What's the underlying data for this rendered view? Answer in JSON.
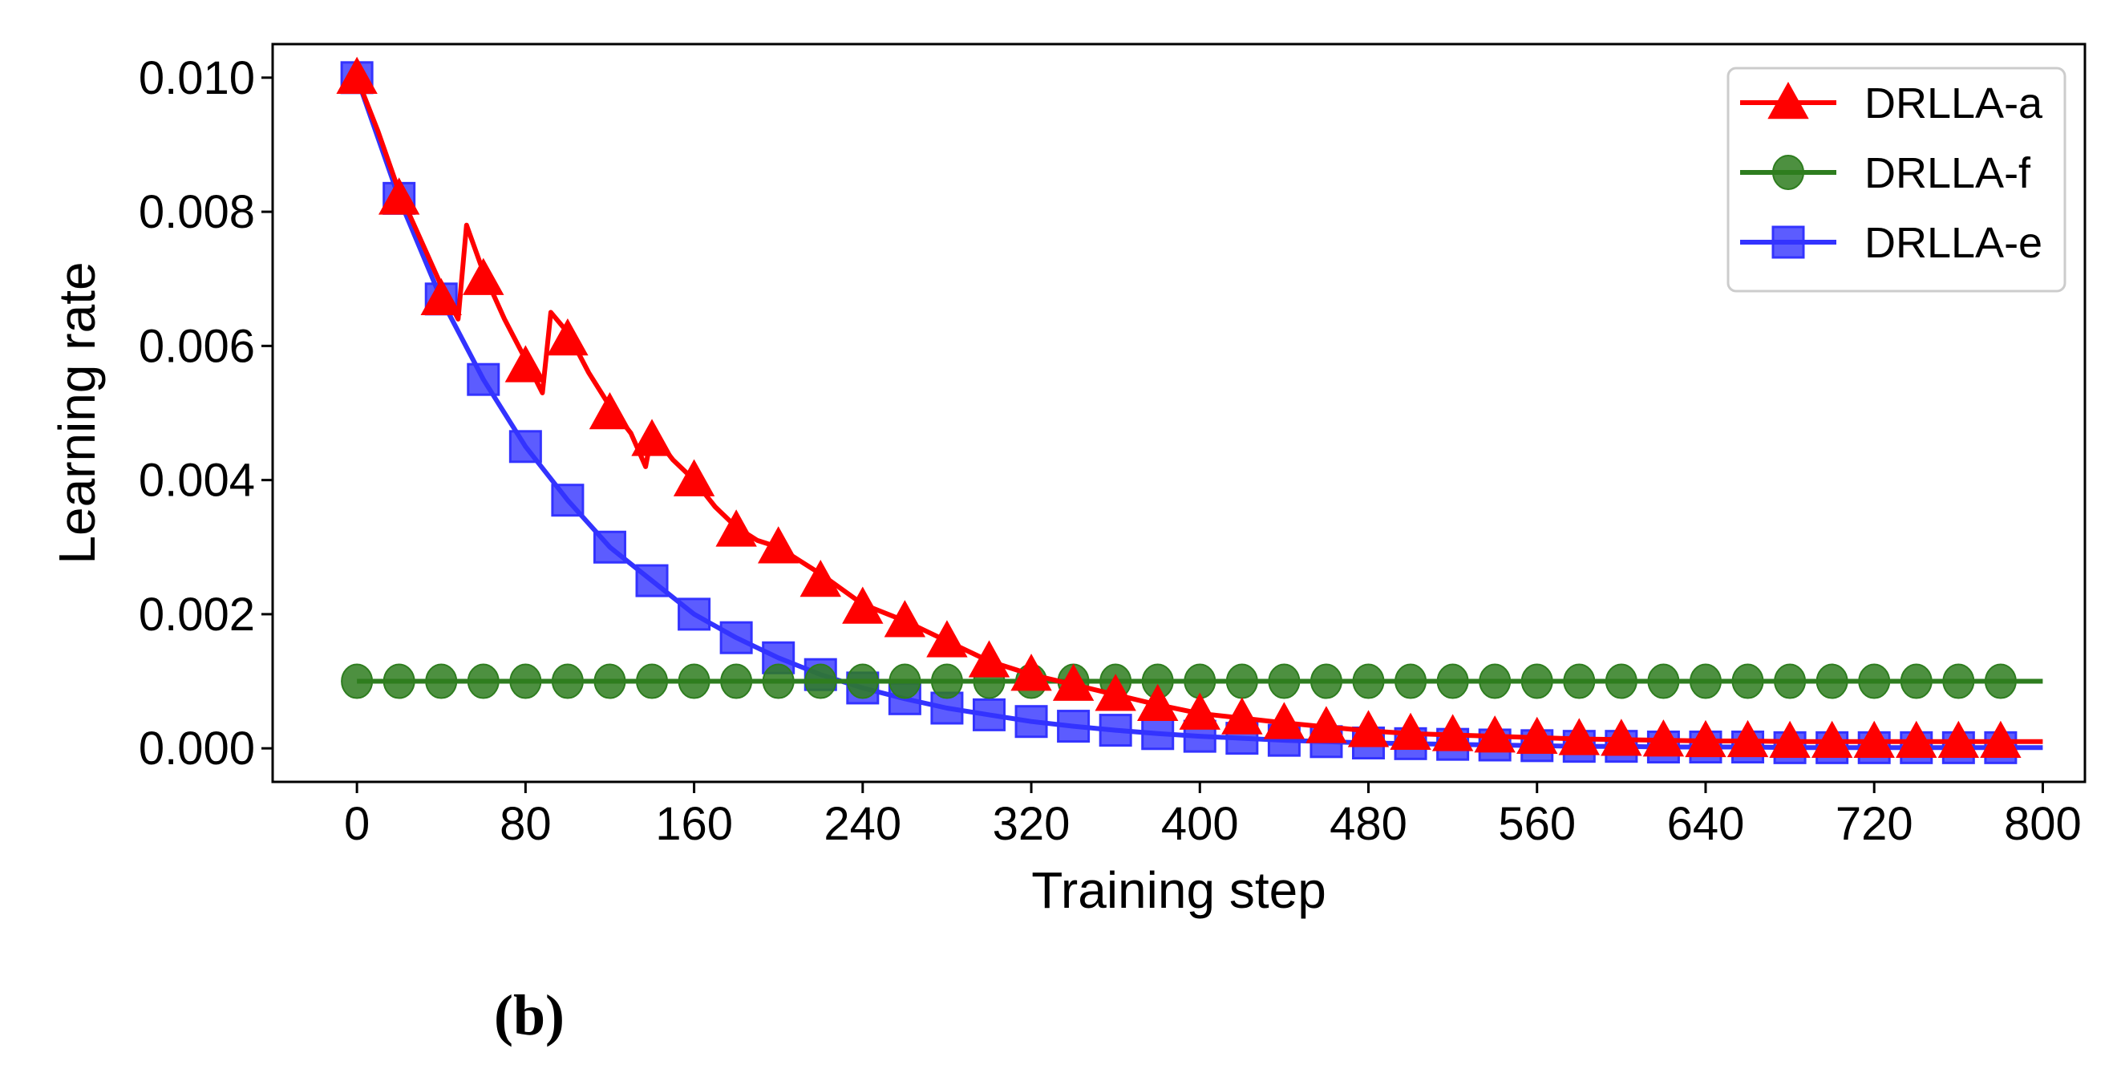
{
  "chart_data": {
    "type": "line",
    "xlabel": "Training step",
    "ylabel": "Learning rate",
    "xlim": [
      -40,
      820
    ],
    "ylim": [
      -0.0005,
      0.0105
    ],
    "xticks": [
      0,
      80,
      160,
      240,
      320,
      400,
      480,
      560,
      640,
      720,
      800
    ],
    "xtick_labels": [
      "0",
      "80",
      "160",
      "240",
      "320",
      "400",
      "480",
      "560",
      "640",
      "720",
      "800"
    ],
    "yticks": [
      0.0,
      0.002,
      0.004,
      0.006,
      0.008,
      0.01
    ],
    "ytick_labels": [
      "0.000",
      "0.002",
      "0.004",
      "0.006",
      "0.008",
      "0.010"
    ],
    "legend_position": "top-right",
    "marker_x": [
      0,
      20,
      40,
      60,
      80,
      100,
      120,
      140,
      160,
      180,
      200,
      220,
      240,
      260,
      280,
      300,
      320,
      340,
      360,
      380,
      400,
      420,
      440,
      460,
      480,
      500,
      520,
      540,
      560,
      580,
      600,
      620,
      640,
      660,
      680,
      700,
      720,
      740,
      760,
      780
    ],
    "series": [
      {
        "name": "DRLLA-a",
        "color": "#ff0000",
        "marker": "triangle",
        "line": [
          [
            0,
            0.01
          ],
          [
            10,
            0.0092
          ],
          [
            20,
            0.0083
          ],
          [
            30,
            0.0076
          ],
          [
            40,
            0.0069
          ],
          [
            48,
            0.0064
          ],
          [
            52,
            0.0078
          ],
          [
            60,
            0.0071
          ],
          [
            70,
            0.0064
          ],
          [
            80,
            0.0058
          ],
          [
            88,
            0.0053
          ],
          [
            92,
            0.0065
          ],
          [
            100,
            0.0062
          ],
          [
            110,
            0.0056
          ],
          [
            120,
            0.0051
          ],
          [
            130,
            0.0047
          ],
          [
            137,
            0.0042
          ],
          [
            140,
            0.0047
          ],
          [
            150,
            0.0043
          ],
          [
            160,
            0.004
          ],
          [
            170,
            0.0036
          ],
          [
            180,
            0.0033
          ],
          [
            190,
            0.0031
          ],
          [
            200,
            0.003
          ],
          [
            210,
            0.0028
          ],
          [
            220,
            0.0026
          ],
          [
            240,
            0.00215
          ],
          [
            260,
            0.0019
          ],
          [
            280,
            0.0016
          ],
          [
            300,
            0.0013
          ],
          [
            320,
            0.0011
          ],
          [
            340,
            0.00095
          ],
          [
            360,
            0.0008
          ],
          [
            380,
            0.00065
          ],
          [
            400,
            0.00052
          ],
          [
            420,
            0.00045
          ],
          [
            440,
            0.00038
          ],
          [
            460,
            0.00032
          ],
          [
            480,
            0.00026
          ],
          [
            500,
            0.00022
          ],
          [
            520,
            0.0002
          ],
          [
            540,
            0.00018
          ],
          [
            560,
            0.00016
          ],
          [
            580,
            0.00014
          ],
          [
            600,
            0.00013
          ],
          [
            620,
            0.00012
          ],
          [
            640,
            0.00011
          ],
          [
            660,
            0.00011
          ],
          [
            680,
            0.0001
          ],
          [
            700,
            0.0001
          ],
          [
            720,
            0.0001
          ],
          [
            740,
            0.0001
          ],
          [
            760,
            0.0001
          ],
          [
            780,
            0.0001
          ],
          [
            800,
            0.0001
          ]
        ],
        "markers": [
          0.01,
          0.0082,
          0.0067,
          0.007,
          0.0057,
          0.0061,
          0.005,
          0.0046,
          0.004,
          0.00325,
          0.003,
          0.0025,
          0.0021,
          0.0019,
          0.0016,
          0.0013,
          0.0011,
          0.00095,
          0.0008,
          0.00065,
          0.00052,
          0.00045,
          0.00038,
          0.00032,
          0.00026,
          0.00022,
          0.0002,
          0.00018,
          0.00016,
          0.00014,
          0.00013,
          0.00012,
          0.00011,
          0.00011,
          0.0001,
          0.0001,
          0.0001,
          0.0001,
          0.0001,
          0.0001
        ]
      },
      {
        "name": "DRLLA-f",
        "color": "#2e7d1f",
        "marker": "circle",
        "line": [
          [
            0,
            0.001
          ],
          [
            800,
            0.001
          ]
        ],
        "markers": [
          0.001,
          0.001,
          0.001,
          0.001,
          0.001,
          0.001,
          0.001,
          0.001,
          0.001,
          0.001,
          0.001,
          0.001,
          0.001,
          0.001,
          0.001,
          0.001,
          0.001,
          0.001,
          0.001,
          0.001,
          0.001,
          0.001,
          0.001,
          0.001,
          0.001,
          0.001,
          0.001,
          0.001,
          0.001,
          0.001,
          0.001,
          0.001,
          0.001,
          0.001,
          0.001,
          0.001,
          0.001,
          0.001,
          0.001,
          0.001
        ]
      },
      {
        "name": "DRLLA-e",
        "color": "#3333ff",
        "marker": "square",
        "line": [
          [
            0,
            0.01
          ],
          [
            20,
            0.0082
          ],
          [
            40,
            0.0067
          ],
          [
            60,
            0.0055
          ],
          [
            80,
            0.0045
          ],
          [
            100,
            0.0037
          ],
          [
            120,
            0.003
          ],
          [
            140,
            0.0025
          ],
          [
            160,
            0.002
          ],
          [
            180,
            0.00165
          ],
          [
            200,
            0.00135
          ],
          [
            220,
            0.0011
          ],
          [
            240,
            0.0009
          ],
          [
            260,
            0.00074
          ],
          [
            280,
            0.0006
          ],
          [
            300,
            0.0005
          ],
          [
            320,
            0.0004
          ],
          [
            340,
            0.00033
          ],
          [
            360,
            0.00027
          ],
          [
            380,
            0.00022
          ],
          [
            400,
            0.00018
          ],
          [
            420,
            0.00015
          ],
          [
            440,
            0.00012
          ],
          [
            460,
            0.0001
          ],
          [
            480,
            8e-05
          ],
          [
            500,
            7e-05
          ],
          [
            520,
            6e-05
          ],
          [
            540,
            5e-05
          ],
          [
            560,
            4e-05
          ],
          [
            580,
            3e-05
          ],
          [
            600,
            3e-05
          ],
          [
            620,
            2e-05
          ],
          [
            640,
            2e-05
          ],
          [
            660,
            2e-05
          ],
          [
            680,
            1e-05
          ],
          [
            700,
            1e-05
          ],
          [
            720,
            1e-05
          ],
          [
            740,
            1e-05
          ],
          [
            760,
            1e-05
          ],
          [
            780,
            1e-05
          ],
          [
            800,
            1e-05
          ]
        ],
        "markers": [
          0.01,
          0.0082,
          0.0067,
          0.0055,
          0.0045,
          0.0037,
          0.003,
          0.0025,
          0.002,
          0.00165,
          0.00135,
          0.0011,
          0.0009,
          0.00074,
          0.0006,
          0.0005,
          0.0004,
          0.00033,
          0.00027,
          0.00022,
          0.00018,
          0.00015,
          0.00012,
          0.0001,
          8e-05,
          7e-05,
          6e-05,
          5e-05,
          4e-05,
          3e-05,
          3e-05,
          2e-05,
          2e-05,
          2e-05,
          1e-05,
          1e-05,
          1e-05,
          1e-05,
          1e-05,
          1e-05
        ]
      }
    ]
  },
  "caption": "(b)"
}
